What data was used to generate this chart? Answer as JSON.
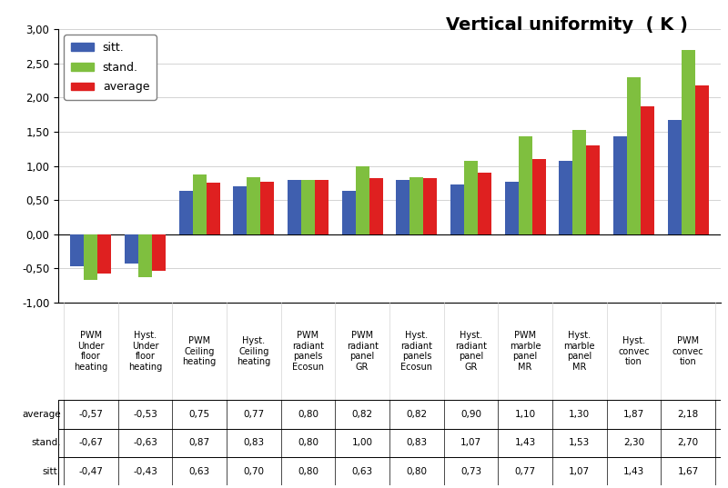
{
  "title": "Vertical uniformity  ( K )",
  "categories": [
    "PWM\nUnder\nfloor\nheating",
    "Hyst.\nUnder\nfloor\nheating",
    "PWM\nCeiling\nheating",
    "Hyst.\nCeiling\nheating",
    "PWM\nradiant\npanels\nEcosun",
    "PWM\nradiant\npanel\nGR",
    "Hyst.\nradiant\npanels\nEcosun",
    "Hyst.\nradiant\npanel\nGR",
    "PWM\nmarble\npanel\nMR",
    "Hyst.\nmarble\npanel\nMR",
    "Hyst.\nconvec\ntion",
    "PWM\nconvec\ntion"
  ],
  "sitt": [
    -0.47,
    -0.43,
    0.63,
    0.7,
    0.8,
    0.63,
    0.8,
    0.73,
    0.77,
    1.07,
    1.43,
    1.67
  ],
  "stand": [
    -0.67,
    -0.63,
    0.87,
    0.83,
    0.8,
    1.0,
    0.83,
    1.07,
    1.43,
    1.53,
    2.3,
    2.7
  ],
  "average": [
    -0.57,
    -0.53,
    0.75,
    0.77,
    0.8,
    0.82,
    0.82,
    0.9,
    1.1,
    1.3,
    1.87,
    2.18
  ],
  "color_sitt": "#3f5faf",
  "color_stand": "#7fbf3f",
  "color_average": "#df2020",
  "ylim": [
    -1.0,
    3.0
  ],
  "yticks": [
    -1.0,
    -0.5,
    0.0,
    0.5,
    1.0,
    1.5,
    2.0,
    2.5,
    3.0
  ],
  "table_rows": [
    "sitt.",
    "stand.",
    "average"
  ],
  "table_sitt": [
    "-0,47",
    "-0,43",
    "0,63",
    "0,70",
    "0,80",
    "0,63",
    "0,80",
    "0,73",
    "0,77",
    "1,07",
    "1,43",
    "1,67"
  ],
  "table_stand": [
    "-0,67",
    "-0,63",
    "0,87",
    "0,83",
    "0,80",
    "1,00",
    "0,83",
    "1,07",
    "1,43",
    "1,53",
    "2,30",
    "2,70"
  ],
  "table_avg": [
    "-0,57",
    "-0,53",
    "0,75",
    "0,77",
    "0,80",
    "0,82",
    "0,82",
    "0,90",
    "1,10",
    "1,30",
    "1,87",
    "2,18"
  ]
}
